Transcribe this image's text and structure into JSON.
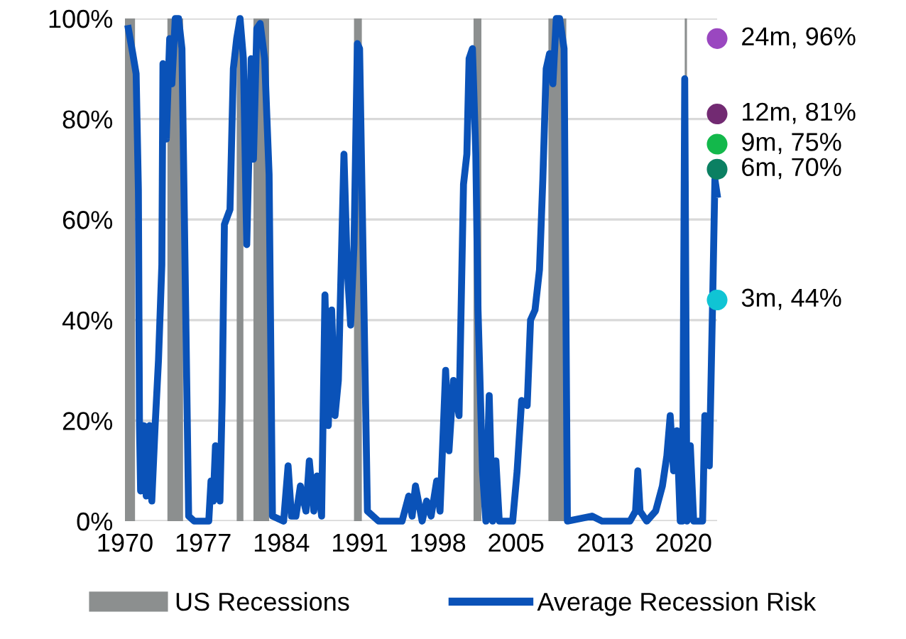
{
  "chart_data": {
    "type": "line",
    "xlim": [
      1970,
      2023
    ],
    "ylim": [
      0,
      100
    ],
    "xticks": [
      {
        "value": 1970,
        "label": "1970"
      },
      {
        "value": 1977,
        "label": "1977"
      },
      {
        "value": 1984,
        "label": "1984"
      },
      {
        "value": 1991,
        "label": "1991"
      },
      {
        "value": 1998,
        "label": "1998"
      },
      {
        "value": 2005,
        "label": "2005"
      },
      2013,
      2020
    ],
    "yticks": [
      {
        "value": 0,
        "label": "0%"
      },
      {
        "value": 20,
        "label": "20%"
      },
      {
        "value": 40,
        "label": "40%"
      },
      {
        "value": 60,
        "label": "60%"
      },
      {
        "value": 80,
        "label": "80%"
      },
      {
        "value": 100,
        "label": "100%"
      }
    ],
    "grid": "y",
    "legend": "bottom",
    "line_style": "solid",
    "bands": [
      {
        "axis": "x",
        "from": 1970.0,
        "to": 1970.9,
        "label": "US Recessions",
        "color": "#8c8f8f"
      },
      {
        "axis": "x",
        "from": 1973.8,
        "to": 1975.2,
        "color": "#8c8f8f"
      },
      {
        "axis": "x",
        "from": 1980.0,
        "to": 1980.6,
        "color": "#8c8f8f"
      },
      {
        "axis": "x",
        "from": 1981.5,
        "to": 1982.9,
        "color": "#8c8f8f"
      },
      {
        "axis": "x",
        "from": 1990.5,
        "to": 1991.2,
        "color": "#8c8f8f"
      },
      {
        "axis": "x",
        "from": 2001.2,
        "to": 2001.9,
        "color": "#8c8f8f"
      },
      {
        "axis": "x",
        "from": 2007.9,
        "to": 2009.5,
        "color": "#8c8f8f"
      },
      {
        "axis": "x",
        "from": 2020.1,
        "to": 2020.3,
        "color": "#8c8f8f"
      }
    ],
    "series": [
      {
        "name": "Average Recession Risk",
        "color": "#0a52b8",
        "x": [
          1970.3,
          1970.7,
          1971.0,
          1971.2,
          1971.3,
          1971.4,
          1971.7,
          1971.9,
          1972.2,
          1972.4,
          1972.7,
          1973.0,
          1973.3,
          1973.4,
          1973.7,
          1974.0,
          1974.2,
          1974.5,
          1974.8,
          1975.1,
          1975.7,
          1976.2,
          1977.5,
          1977.7,
          1977.9,
          1978.1,
          1978.5,
          1978.7,
          1978.9,
          1979.4,
          1979.7,
          1980.0,
          1980.3,
          1980.6,
          1980.9,
          1981.3,
          1981.5,
          1981.8,
          1982.1,
          1982.5,
          1982.9,
          1983.2,
          1984.2,
          1984.6,
          1984.9,
          1985.3,
          1985.7,
          1986.2,
          1986.5,
          1986.9,
          1987.2,
          1987.6,
          1987.9,
          1988.2,
          1988.5,
          1988.8,
          1989.1,
          1989.6,
          1989.9,
          1990.2,
          1990.5,
          1990.8,
          1991.0,
          1991.7,
          1992.7,
          1994.8,
          1995.4,
          1995.7,
          1996.0,
          1996.6,
          1997.0,
          1997.4,
          1997.9,
          1998.2,
          1998.7,
          1999.0,
          1999.4,
          1999.9,
          2000.3,
          2000.6,
          2000.8,
          2001.1,
          2001.4,
          2001.6,
          2002.0,
          2002.3,
          2002.6,
          2002.9,
          2003.2,
          2003.5,
          2004.7,
          2005.1,
          2005.5,
          2006.0,
          2006.3,
          2006.7,
          2007.1,
          2007.4,
          2007.7,
          2008.0,
          2008.3,
          2008.6,
          2008.9,
          2009.3,
          2009.6,
          2011.8,
          2012.7,
          2015.2,
          2015.7,
          2015.9,
          2016.1,
          2016.7,
          2017.5,
          2018.1,
          2018.5,
          2018.8,
          2019.1,
          2019.4,
          2019.7,
          2019.9,
          2020.1,
          2020.3,
          2020.6,
          2020.9,
          2021.7,
          2021.9,
          2022.3,
          2022.6,
          2022.8,
          2023.0
        ],
        "values": [
          98,
          93,
          89,
          66,
          19,
          6,
          19,
          5,
          19,
          4,
          19,
          32,
          51,
          91,
          76,
          96,
          87,
          100,
          100,
          94,
          1,
          0,
          0,
          8,
          4,
          15,
          4,
          24,
          59,
          62,
          90,
          96,
          100,
          92,
          55,
          92,
          72,
          98,
          99,
          92,
          69,
          1,
          0,
          11,
          1,
          1,
          7,
          2,
          12,
          2,
          9,
          1,
          45,
          19,
          42,
          21,
          28,
          73,
          50,
          39,
          55,
          95,
          94,
          2,
          0,
          0,
          5,
          1,
          7,
          0,
          4,
          1,
          8,
          2,
          30,
          14,
          28,
          21,
          67,
          73,
          92,
          94,
          73,
          42,
          10,
          0,
          25,
          0,
          12,
          0,
          0,
          10,
          24,
          23,
          40,
          42,
          50,
          68,
          90,
          93,
          87,
          100,
          100,
          94,
          0,
          1,
          0,
          0,
          2,
          10,
          2,
          0,
          2,
          7,
          13,
          21,
          10,
          18,
          0,
          0,
          88,
          0,
          15,
          0,
          0,
          21,
          11,
          44,
          68,
          65
        ]
      },
      {
        "type": "scatter",
        "marker": "circle",
        "x": [
          2023,
          2023,
          2023,
          2023,
          2023
        ],
        "values": [
          96,
          81,
          75,
          70,
          44
        ],
        "colors": [
          "#9a47c0",
          "#722a72",
          "#13b84b",
          "#0b8062",
          "#10c4d4"
        ],
        "value_labels": [
          "24m, 96%",
          "12m, 81%",
          "9m, 75%",
          "6m, 70%",
          "3m, 44%"
        ]
      }
    ]
  }
}
